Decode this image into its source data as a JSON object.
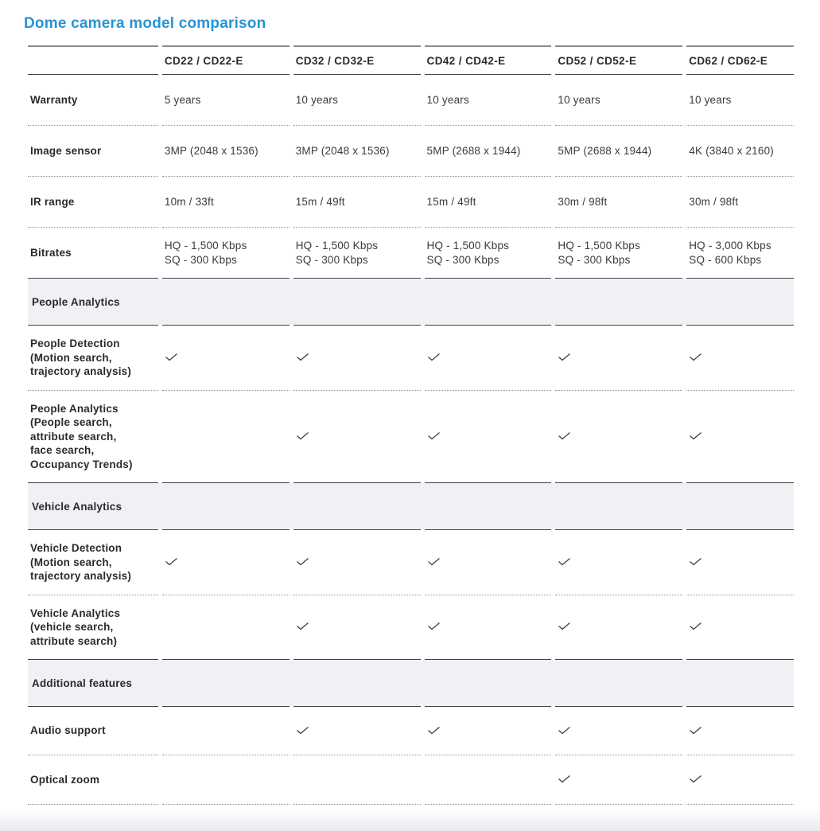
{
  "page": {
    "title": "Dome camera model comparison",
    "accent_color": "#2694d4"
  },
  "table": {
    "columns": [
      "CD22 / CD22-E",
      "CD32 / CD32-E",
      "CD42 / CD42-E",
      "CD52 / CD52-E",
      "CD62 / CD62-E"
    ],
    "check_color": "#414042",
    "rows": [
      {
        "type": "spec",
        "label": "Warranty",
        "values": [
          "5 years",
          "10 years",
          "10 years",
          "10 years",
          "10 years"
        ]
      },
      {
        "type": "spec",
        "label": "Image sensor",
        "values": [
          "3MP (2048 x 1536)",
          "3MP (2048 x 1536)",
          "5MP (2688 x 1944)",
          "5MP (2688 x 1944)",
          "4K (3840 x 2160)"
        ]
      },
      {
        "type": "spec",
        "label": "IR range",
        "values": [
          "10m / 33ft",
          "15m / 49ft",
          "15m / 49ft",
          "30m / 98ft",
          "30m / 98ft"
        ]
      },
      {
        "type": "spec",
        "label": "Bitrates",
        "values": [
          "HQ - 1,500 Kbps\nSQ - 300 Kbps",
          "HQ - 1,500 Kbps\nSQ - 300 Kbps",
          "HQ - 1,500 Kbps\nSQ - 300 Kbps",
          "HQ - 1,500 Kbps\nSQ - 300 Kbps",
          "HQ - 3,000 Kbps\nSQ - 600 Kbps"
        ]
      },
      {
        "type": "section",
        "label": "People Analytics"
      },
      {
        "type": "check",
        "label": "People Detection\n(Motion search,\ntrajectory analysis)",
        "checks": [
          true,
          true,
          true,
          true,
          true
        ]
      },
      {
        "type": "check",
        "label": "People Analytics\n(People search,\nattribute search,\nface search,\nOccupancy Trends)",
        "checks": [
          false,
          true,
          true,
          true,
          true
        ]
      },
      {
        "type": "section",
        "label": "Vehicle Analytics"
      },
      {
        "type": "check",
        "label": "Vehicle Detection\n(Motion search,\ntrajectory analysis)",
        "checks": [
          true,
          true,
          true,
          true,
          true
        ]
      },
      {
        "type": "check",
        "label": "Vehicle Analytics\n(vehicle search,\nattribute search)",
        "checks": [
          false,
          true,
          true,
          true,
          true
        ]
      },
      {
        "type": "section",
        "label": "Additional features"
      },
      {
        "type": "check",
        "label": "Audio support",
        "checks": [
          false,
          true,
          true,
          true,
          true
        ]
      },
      {
        "type": "check",
        "label": "Optical zoom",
        "checks": [
          false,
          false,
          false,
          true,
          true
        ]
      }
    ]
  }
}
